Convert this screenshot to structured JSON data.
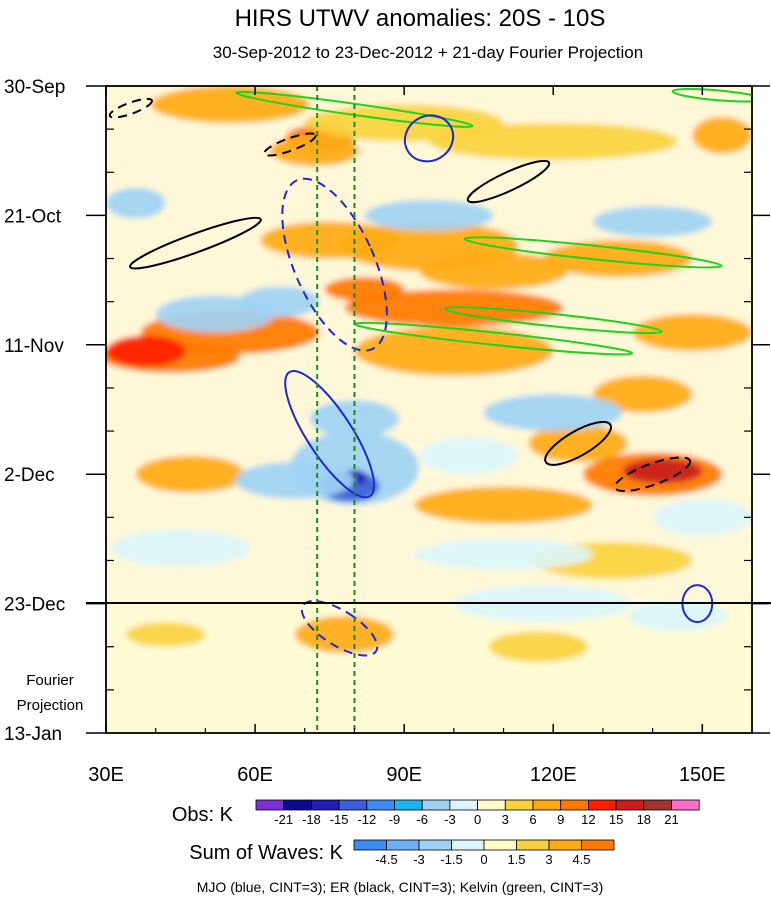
{
  "chart_data": {
    "type": "heatmap",
    "title": "HIRS UTWV anomalies: 20S - 10S",
    "subtitle": "30-Sep-2012 to 23-Dec-2012 + 21-day Fourier Projection",
    "x_ticks": [
      {
        "value": 30,
        "label": "30E"
      },
      {
        "value": 60,
        "label": "60E"
      },
      {
        "value": 90,
        "label": "90E"
      },
      {
        "value": 120,
        "label": "120E"
      },
      {
        "value": 150,
        "label": "150E"
      }
    ],
    "x_range": [
      30,
      160
    ],
    "y_ticks": [
      {
        "value": 0,
        "label": "30-Sep"
      },
      {
        "value": 21,
        "label": "21-Oct"
      },
      {
        "value": 42,
        "label": "11-Nov"
      },
      {
        "value": 63,
        "label": "2-Dec"
      },
      {
        "value": 84,
        "label": "23-Dec"
      },
      {
        "value": 105,
        "label": "13-Jan"
      }
    ],
    "y_range_days": [
      0,
      105
    ],
    "projection_start_day": 84,
    "projection_label": [
      "Fourier",
      "Projection"
    ],
    "reference_lines_lon": [
      72.5,
      80
    ],
    "obs_colorbar": {
      "label": "Obs: K",
      "levels": [
        "-21",
        "-18",
        "-15",
        "-12",
        "-9",
        "-6",
        "-3",
        "0",
        "3",
        "6",
        "9",
        "12",
        "15",
        "18",
        "21"
      ],
      "colors": [
        "#7b2fd6",
        "#0b0b8e",
        "#1e1eb4",
        "#3a5fd6",
        "#3b8ef0",
        "#1eb4f0",
        "#a0d2f5",
        "#dcf5fa",
        "#fffbc8",
        "#fad23c",
        "#ffaa14",
        "#ff7800",
        "#ff1e00",
        "#c81e1e",
        "#a03232",
        "#ff6ec8"
      ]
    },
    "waves_colorbar": {
      "label": "Sum of Waves: K",
      "levels": [
        "-4.5",
        "-3",
        "-1.5",
        "0",
        "1.5",
        "3",
        "4.5"
      ],
      "colors": [
        "#3b8ef0",
        "#6fb0f5",
        "#a0d2f5",
        "#dcf5fa",
        "#fffbc8",
        "#fad23c",
        "#ffaa14",
        "#ff7800"
      ]
    },
    "wave_contours_note": "MJO (blue, CINT=3); ER (black, CINT=3); Kelvin (green, CINT=3)",
    "anomaly_features": [
      {
        "lon": 55,
        "day": 40,
        "w": 18,
        "h": 3.5,
        "value": 9
      },
      {
        "lon": 43,
        "day": 44,
        "w": 14,
        "h": 2.5,
        "value": 9
      },
      {
        "lon": 73,
        "day": 8.5,
        "w": 7,
        "h": 2.2,
        "value": 9
      },
      {
        "lon": 72,
        "day": 10.5,
        "w": 9,
        "h": 2.5,
        "value": 6
      },
      {
        "lon": 95,
        "day": 26,
        "w": 18,
        "h": 4,
        "value": 6
      },
      {
        "lon": 108,
        "day": 30,
        "w": 15,
        "h": 3,
        "value": 6
      },
      {
        "lon": 100,
        "day": 43,
        "w": 20,
        "h": 4,
        "value": 6
      },
      {
        "lon": 133,
        "day": 28,
        "w": 15,
        "h": 3,
        "value": 6
      },
      {
        "lon": 148,
        "day": 40,
        "w": 12,
        "h": 3,
        "value": 6
      },
      {
        "lon": 138,
        "day": 50,
        "w": 10,
        "h": 3,
        "value": 6
      },
      {
        "lon": 125,
        "day": 58,
        "w": 10,
        "h": 3,
        "value": 6
      },
      {
        "lon": 110,
        "day": 68,
        "w": 18,
        "h": 3,
        "value": 6
      },
      {
        "lon": 140,
        "day": 63,
        "w": 14,
        "h": 3.5,
        "value": 9
      },
      {
        "lon": 142,
        "day": 62.5,
        "w": 8,
        "h": 2,
        "value": 15
      },
      {
        "lon": 154,
        "day": 8,
        "w": 6,
        "h": 3,
        "value": 6
      },
      {
        "lon": 47,
        "day": 63,
        "w": 11,
        "h": 3,
        "value": 6
      },
      {
        "lon": 38,
        "day": 43,
        "w": 8,
        "h": 2.5,
        "value": 12
      },
      {
        "lon": 75,
        "day": 25,
        "w": 14,
        "h": 3,
        "value": 6
      },
      {
        "lon": 55,
        "day": 3,
        "w": 16,
        "h": 3,
        "value": 6
      },
      {
        "lon": 90,
        "day": 6,
        "w": 20,
        "h": 3,
        "value": 3
      },
      {
        "lon": 120,
        "day": 9,
        "w": 25,
        "h": 3,
        "value": 3
      },
      {
        "lon": 132,
        "day": 77,
        "w": 16,
        "h": 3,
        "value": 3
      },
      {
        "lon": 100,
        "day": 36,
        "w": 22,
        "h": 3,
        "value": 9
      },
      {
        "lon": 82,
        "day": 33,
        "w": 8,
        "h": 2,
        "value": 9
      },
      {
        "lon": 80,
        "day": 62,
        "w": 13,
        "h": 6,
        "value": -6
      },
      {
        "lon": 79,
        "day": 65,
        "w": 6,
        "h": 2.5,
        "value": -15
      },
      {
        "lon": 80,
        "day": 63.5,
        "w": 2.5,
        "h": 1.2,
        "value": -18
      },
      {
        "lon": 68,
        "day": 64,
        "w": 12,
        "h": 3,
        "value": -6
      },
      {
        "lon": 80,
        "day": 54,
        "w": 9,
        "h": 3,
        "value": -6
      },
      {
        "lon": 52,
        "day": 37,
        "w": 12,
        "h": 3,
        "value": -6
      },
      {
        "lon": 65,
        "day": 35,
        "w": 8,
        "h": 2.5,
        "value": -6
      },
      {
        "lon": 95,
        "day": 21,
        "w": 13,
        "h": 2.5,
        "value": -6
      },
      {
        "lon": 140,
        "day": 22,
        "w": 12,
        "h": 2.5,
        "value": -6
      },
      {
        "lon": 120,
        "day": 53,
        "w": 14,
        "h": 3,
        "value": -6
      },
      {
        "lon": 103,
        "day": 60,
        "w": 10,
        "h": 3,
        "value": -3
      },
      {
        "lon": 36,
        "day": 19,
        "w": 6,
        "h": 2.5,
        "value": -6
      },
      {
        "lon": 110,
        "day": 76,
        "w": 18,
        "h": 2.5,
        "value": -3
      },
      {
        "lon": 150,
        "day": 70,
        "w": 10,
        "h": 3,
        "value": -3
      },
      {
        "lon": 118,
        "day": 84,
        "w": 18,
        "h": 3,
        "value": -3
      },
      {
        "lon": 45,
        "day": 75,
        "w": 14,
        "h": 3,
        "value": -3
      }
    ],
    "projection_features": [
      {
        "lon": 78,
        "day": 89,
        "w": 10,
        "h": 3,
        "value": 3
      },
      {
        "lon": 42,
        "day": 89,
        "w": 8,
        "h": 2,
        "value": 1.5
      },
      {
        "lon": 117,
        "day": 91,
        "w": 10,
        "h": 2.5,
        "value": 1.5
      },
      {
        "lon": 145,
        "day": 86,
        "w": 10,
        "h": 2.5,
        "value": -1.5
      }
    ],
    "mjo_contours": [
      {
        "lon": 95,
        "day": 8.5,
        "rx": 4.5,
        "ry": 4,
        "angle": 60,
        "dashed": false
      },
      {
        "lon": 76,
        "day": 29,
        "rx": 8,
        "ry": 15,
        "angle": -24,
        "dashed": true
      },
      {
        "lon": 75,
        "day": 56.5,
        "rx": 4.5,
        "ry": 12,
        "angle": -33,
        "dashed": false
      },
      {
        "lon": 77,
        "day": 88,
        "rx": 3.5,
        "ry": 7,
        "angle": -58,
        "dashed": true
      },
      {
        "lon": 149,
        "day": 84,
        "rx": 3,
        "ry": 3,
        "angle": 0,
        "dashed": false
      }
    ],
    "er_contours": [
      {
        "lon": 35,
        "day": 3.6,
        "rx": 4.5,
        "ry": 0.9,
        "angle": -20,
        "dashed": true
      },
      {
        "lon": 67,
        "day": 9.5,
        "rx": 5.5,
        "ry": 1.0,
        "angle": -20,
        "dashed": true
      },
      {
        "lon": 48,
        "day": 25.5,
        "rx": 14,
        "ry": 1.5,
        "angle": -20,
        "dashed": false
      },
      {
        "lon": 111,
        "day": 15.5,
        "rx": 9,
        "ry": 1.5,
        "angle": -25,
        "dashed": false
      },
      {
        "lon": 125,
        "day": 58,
        "rx": 7.5,
        "ry": 2,
        "angle": -30,
        "dashed": false
      },
      {
        "lon": 140,
        "day": 63,
        "rx": 8,
        "ry": 1.7,
        "angle": -20,
        "dashed": true
      }
    ],
    "kelvin_contours": [
      {
        "lon": 80,
        "day": 3.8,
        "rx": 24,
        "ry": 0.9,
        "angle": 8,
        "dashed": false
      },
      {
        "lon": 128,
        "day": 27,
        "rx": 26,
        "ry": 1.1,
        "angle": 6,
        "dashed": false
      },
      {
        "lon": 120,
        "day": 38,
        "rx": 22,
        "ry": 1.0,
        "angle": 6,
        "dashed": false
      },
      {
        "lon": 108,
        "day": 41,
        "rx": 28,
        "ry": 1.0,
        "angle": 6,
        "dashed": false
      },
      {
        "lon": 153,
        "day": 1.5,
        "rx": 9,
        "ry": 0.8,
        "angle": 5,
        "dashed": false
      }
    ]
  }
}
